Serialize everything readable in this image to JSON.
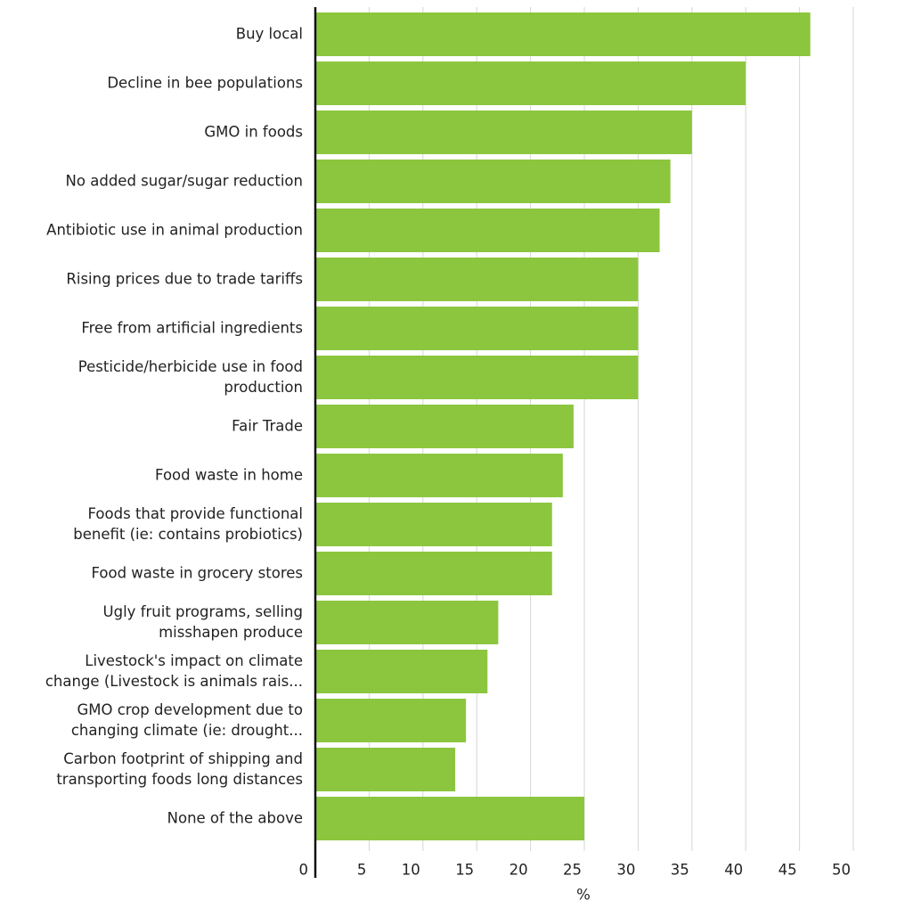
{
  "chart_data": {
    "type": "bar",
    "orientation": "horizontal",
    "categories": [
      [
        "Buy local"
      ],
      [
        "Decline in bee populations"
      ],
      [
        "GMO in foods"
      ],
      [
        "No added sugar/sugar reduction"
      ],
      [
        "Antibiotic use in animal production"
      ],
      [
        "Rising prices due to trade tariffs"
      ],
      [
        "Free from artificial ingredients"
      ],
      [
        "Pesticide/herbicide use in food",
        "production"
      ],
      [
        "Fair Trade"
      ],
      [
        "Food waste in home"
      ],
      [
        "Foods that provide functional",
        "benefit (ie: contains probiotics)"
      ],
      [
        "Food waste in grocery stores"
      ],
      [
        "Ugly fruit programs, selling",
        "misshapen produce"
      ],
      [
        "Livestock's impact on climate",
        "change (Livestock is animals rais..."
      ],
      [
        "GMO crop development due to",
        "changing climate (ie: drought..."
      ],
      [
        "Carbon footprint of shipping and",
        "transporting foods long distances"
      ],
      [
        "None of the above"
      ]
    ],
    "values": [
      46,
      40,
      35,
      33,
      32,
      30,
      30,
      30,
      24,
      23,
      22,
      22,
      17,
      16,
      14,
      13,
      25
    ],
    "xlim": [
      0,
      50
    ],
    "xticks": [
      0,
      5,
      10,
      15,
      20,
      25,
      30,
      35,
      40,
      45,
      50
    ],
    "xlabel": "%",
    "ylabel": "",
    "title": "",
    "grid": true,
    "colors": {
      "bar": "#8cc63f",
      "grid": "#d6d6d6",
      "axis": "#111111",
      "text": "#222222"
    }
  }
}
